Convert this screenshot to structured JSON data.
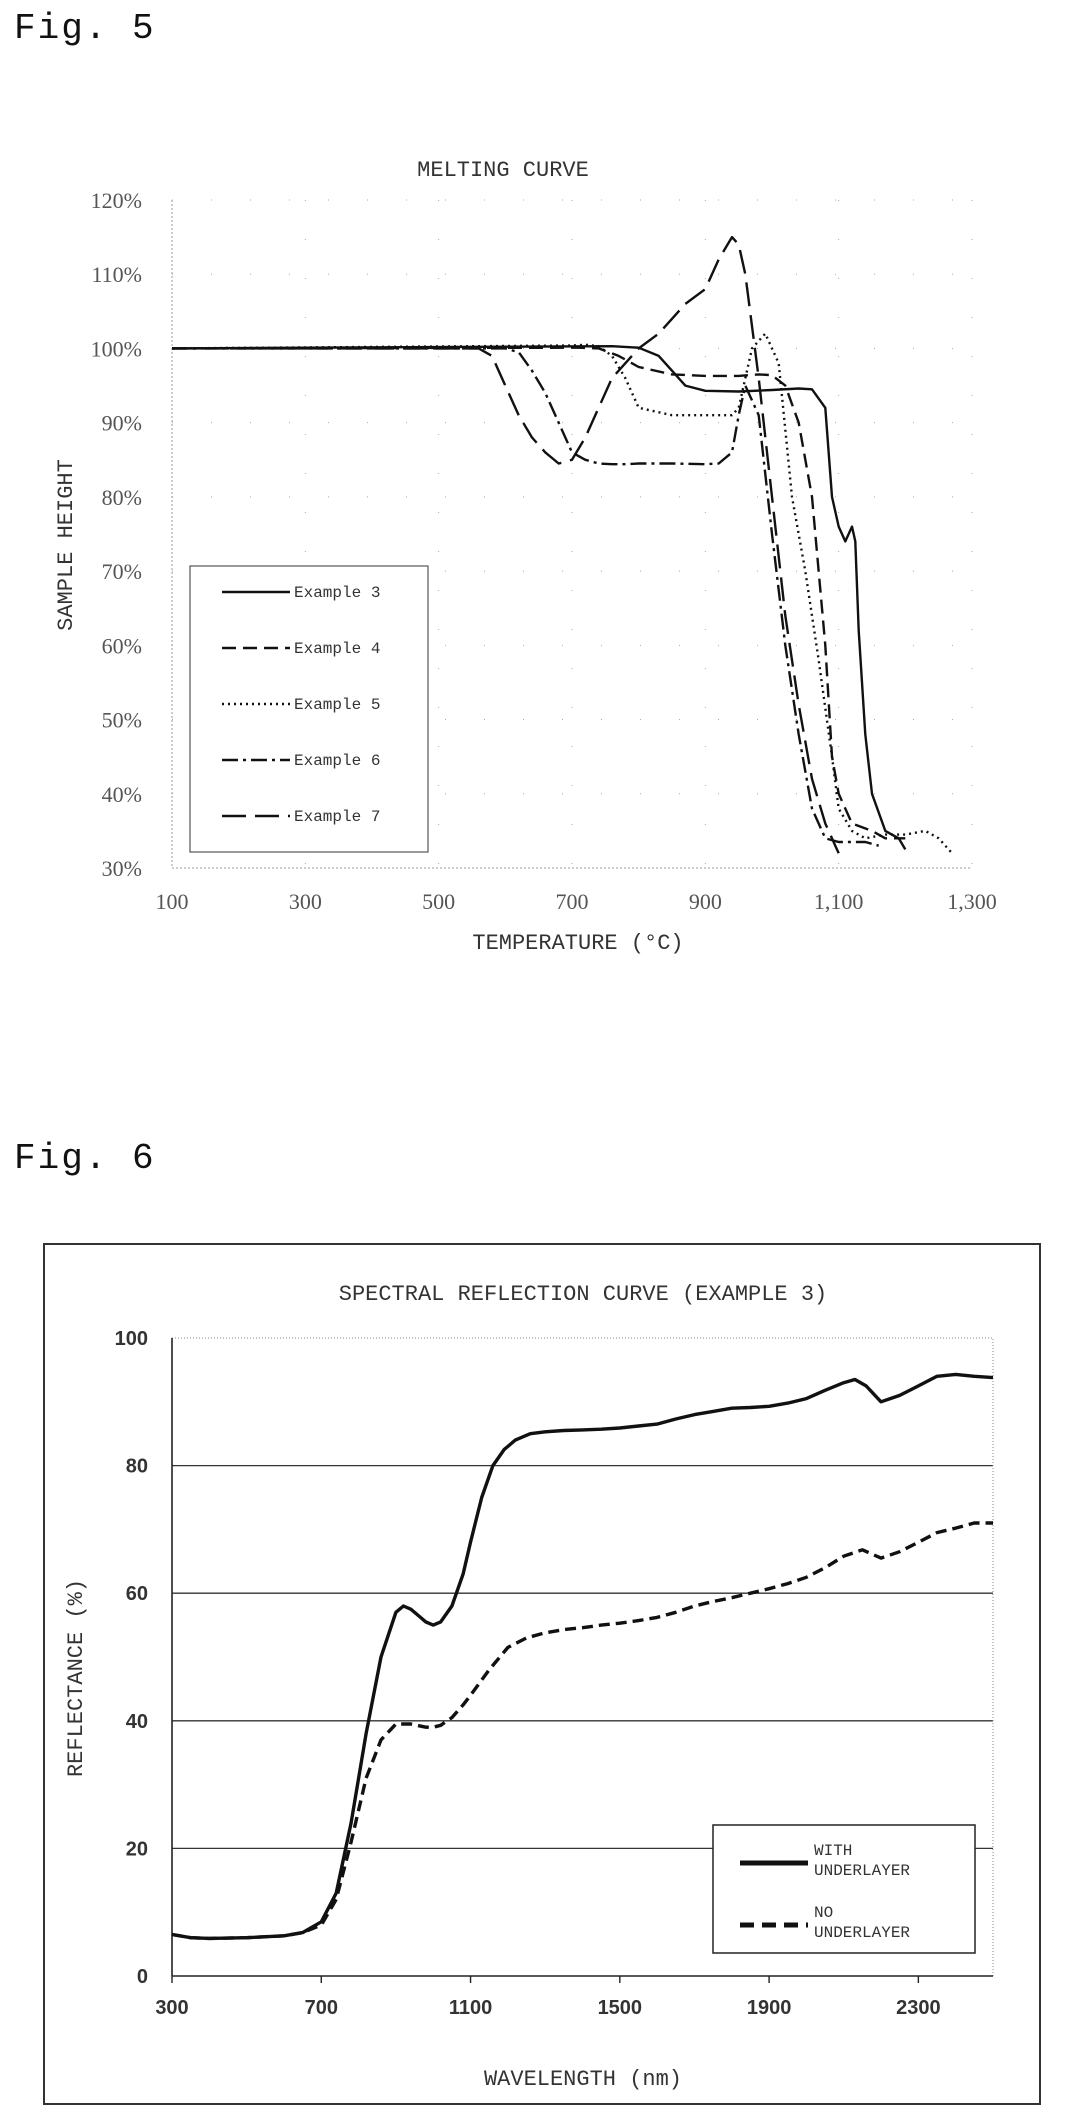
{
  "figures": [
    {
      "label": "Fig. 5"
    },
    {
      "label": "Fig. 6"
    }
  ],
  "chart_data": [
    {
      "type": "line",
      "title": "MELTING CURVE",
      "xlabel": "TEMPERATURE (°C)",
      "ylabel": "SAMPLE HEIGHT",
      "xlim": [
        100,
        1300
      ],
      "ylim": [
        30,
        120
      ],
      "x_ticks": [
        "100",
        "300",
        "500",
        "700",
        "900",
        "1,100",
        "1,300"
      ],
      "y_ticks": [
        "30%",
        "40%",
        "50%",
        "60%",
        "70%",
        "80%",
        "90%",
        "100%",
        "110%",
        "120%"
      ],
      "grid": "dotted",
      "legend_position": "lower-left",
      "series": [
        {
          "name": "Example 3",
          "style": "solid",
          "x": [
            100,
            760,
            800,
            830,
            850,
            870,
            900,
            950,
            1000,
            1040,
            1060,
            1080,
            1090,
            1100,
            1110,
            1120,
            1125,
            1130,
            1140,
            1150,
            1170,
            1190,
            1200
          ],
          "y": [
            100,
            100.3,
            100.1,
            99,
            97,
            95,
            94.3,
            94.2,
            94.4,
            94.6,
            94.5,
            92,
            80,
            76,
            74,
            76,
            74,
            62,
            48,
            40,
            35,
            34,
            32.5
          ]
        },
        {
          "name": "Example 4",
          "style": "dashed",
          "x": [
            100,
            710,
            740,
            770,
            800,
            850,
            900,
            950,
            980,
            1000,
            1020,
            1040,
            1060,
            1080,
            1090,
            1100,
            1120,
            1150,
            1170,
            1200
          ],
          "y": [
            100,
            100.1,
            100,
            99,
            97.5,
            96.5,
            96.3,
            96.3,
            96.5,
            96.4,
            95,
            90,
            80,
            60,
            45,
            40,
            36,
            35,
            34,
            34
          ]
        },
        {
          "name": "Example 5",
          "style": "dotted",
          "x": [
            100,
            700,
            720,
            740,
            760,
            780,
            800,
            850,
            900,
            920,
            940,
            950,
            970,
            990,
            1010,
            1030,
            1050,
            1070,
            1090,
            1100,
            1120,
            1140,
            1170,
            1200,
            1230,
            1250,
            1270
          ],
          "y": [
            100,
            100.4,
            100.5,
            100.3,
            99,
            96,
            92,
            91,
            91,
            91,
            91,
            92,
            100,
            102,
            98,
            80,
            70,
            58,
            45,
            38,
            35,
            34,
            34.5,
            34.5,
            35,
            34,
            32
          ]
        },
        {
          "name": "Example 6",
          "style": "dashdot",
          "x": [
            100,
            600,
            620,
            640,
            660,
            680,
            700,
            720,
            740,
            760,
            780,
            800,
            850,
            900,
            920,
            940,
            950,
            960,
            980,
            1000,
            1020,
            1040,
            1060,
            1080,
            1100,
            1120,
            1140,
            1160
          ],
          "y": [
            100,
            100,
            99.5,
            97,
            94,
            90,
            86,
            85,
            84.5,
            84.4,
            84.4,
            84.5,
            84.5,
            84.4,
            84.5,
            86,
            91,
            95,
            91,
            75,
            60,
            48,
            38,
            34,
            33.5,
            33.5,
            33.5,
            33
          ]
        },
        {
          "name": "Example 7",
          "style": "longdash",
          "x": [
            100,
            560,
            580,
            600,
            620,
            640,
            660,
            680,
            700,
            720,
            760,
            800,
            830,
            850,
            870,
            900,
            920,
            940,
            950,
            960,
            980,
            1000,
            1020,
            1040,
            1060,
            1080,
            1095,
            1100
          ],
          "y": [
            100,
            100,
            99,
            95,
            91,
            88,
            86,
            84.5,
            85,
            88,
            96,
            100,
            102,
            104,
            106,
            108,
            112,
            115,
            114,
            110,
            96,
            80,
            64,
            52,
            42,
            36,
            33,
            32
          ]
        }
      ]
    },
    {
      "type": "line",
      "title": "SPECTRAL REFLECTION CURVE (EXAMPLE 3)",
      "xlabel": "WAVELENGTH (nm)",
      "ylabel": "REFLECTANCE (%)",
      "xlim": [
        300,
        2500
      ],
      "ylim": [
        0,
        100
      ],
      "x_ticks": [
        "300",
        "700",
        "1100",
        "1500",
        "1900",
        "2300"
      ],
      "y_ticks": [
        "0",
        "20",
        "40",
        "60",
        "80",
        "100"
      ],
      "grid": "horizontal",
      "legend_position": "bottom-right",
      "series": [
        {
          "name": "WITH\nUNDERLAYER",
          "style": "solid",
          "x": [
            300,
            350,
            400,
            500,
            600,
            650,
            700,
            740,
            780,
            820,
            860,
            900,
            920,
            940,
            960,
            980,
            1000,
            1020,
            1050,
            1080,
            1100,
            1130,
            1160,
            1190,
            1220,
            1260,
            1300,
            1350,
            1400,
            1450,
            1500,
            1550,
            1600,
            1650,
            1700,
            1750,
            1800,
            1850,
            1900,
            1950,
            2000,
            2050,
            2100,
            2130,
            2160,
            2200,
            2250,
            2300,
            2350,
            2400,
            2450,
            2500
          ],
          "y": [
            6.5,
            6,
            5.9,
            6,
            6.3,
            6.8,
            8.5,
            13,
            24,
            38,
            50,
            57,
            58,
            57.5,
            56.5,
            55.5,
            55,
            55.5,
            58,
            63,
            68,
            75,
            80,
            82.5,
            84,
            85,
            85.3,
            85.5,
            85.6,
            85.7,
            85.9,
            86.2,
            86.5,
            87.3,
            88,
            88.5,
            89,
            89.1,
            89.3,
            89.8,
            90.5,
            91.8,
            93,
            93.5,
            92.5,
            90,
            91,
            92.5,
            94,
            94.3,
            94,
            93.8
          ]
        },
        {
          "name": "NO\nUNDERLAYER",
          "style": "dashed",
          "x": [
            300,
            350,
            400,
            500,
            600,
            650,
            700,
            740,
            780,
            820,
            860,
            900,
            940,
            980,
            1000,
            1020,
            1050,
            1080,
            1100,
            1150,
            1200,
            1250,
            1300,
            1350,
            1400,
            1450,
            1500,
            1550,
            1600,
            1650,
            1700,
            1750,
            1800,
            1850,
            1900,
            1950,
            2000,
            2050,
            2100,
            2150,
            2200,
            2250,
            2300,
            2350,
            2400,
            2450,
            2500
          ],
          "y": [
            6.5,
            6,
            5.9,
            6,
            6.3,
            6.8,
            8,
            12,
            21,
            31,
            37,
            39.5,
            39.5,
            39,
            39,
            39.3,
            40.5,
            42.5,
            44,
            48,
            51.5,
            53,
            53.8,
            54.3,
            54.6,
            55,
            55.3,
            55.7,
            56.2,
            57,
            58,
            58.7,
            59.3,
            60,
            60.7,
            61.5,
            62.5,
            64,
            65.8,
            66.8,
            65.5,
            66.5,
            68,
            69.5,
            70.2,
            71,
            71
          ]
        }
      ]
    }
  ]
}
